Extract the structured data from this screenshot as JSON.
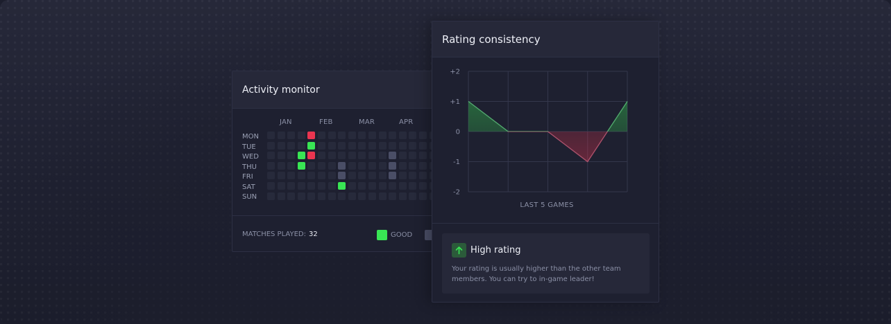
{
  "activity_monitor": {
    "title": "Activity monitor",
    "months": [
      "JAN",
      "FEB",
      "MAR",
      "APR"
    ],
    "days": [
      "MON",
      "TUE",
      "WED",
      "THU",
      "FRI",
      "SAT",
      "SUN"
    ],
    "marked_cells": [
      {
        "day": 0,
        "week": 4,
        "status": "bad"
      },
      {
        "day": 1,
        "week": 4,
        "status": "good"
      },
      {
        "day": 2,
        "week": 3,
        "status": "good"
      },
      {
        "day": 2,
        "week": 4,
        "status": "bad"
      },
      {
        "day": 3,
        "week": 3,
        "status": "good"
      },
      {
        "day": 3,
        "week": 7,
        "status": "avg"
      },
      {
        "day": 4,
        "week": 7,
        "status": "avg"
      },
      {
        "day": 5,
        "week": 7,
        "status": "good"
      },
      {
        "day": 2,
        "week": 12,
        "status": "avg"
      },
      {
        "day": 3,
        "week": 12,
        "status": "avg"
      },
      {
        "day": 4,
        "week": 12,
        "status": "avg"
      }
    ],
    "matches_label": "MATCHES PLAYED:",
    "matches_value": "32",
    "legend": [
      {
        "label": "GOOD",
        "color": "#39e554"
      },
      {
        "label": "",
        "color": "#4a4e66"
      }
    ]
  },
  "rating_consistency": {
    "title": "Rating consistency",
    "info": {
      "icon": "arrow-up-icon",
      "title": "High rating",
      "text": "Your rating is usually higher than the other team members. You can try to in-game leader!"
    }
  },
  "colors": {
    "good": "#39e554",
    "bad": "#ea3550",
    "avg": "#4a4e66",
    "empty": "#272a3b"
  },
  "chart_data": {
    "type": "area",
    "title": "",
    "xlabel": "LAST 5 GAMES",
    "ylabel": "",
    "x": [
      1,
      2,
      3,
      4,
      5
    ],
    "y_tick_labels": [
      "+2",
      "+1",
      "0",
      "-1",
      "-2"
    ],
    "ylim": [
      -2,
      2
    ],
    "grid": true,
    "series": [
      {
        "values": [
          1,
          0,
          0,
          -1,
          1
        ]
      }
    ],
    "positive_color": "#39e554",
    "negative_color": "#ea3550"
  }
}
